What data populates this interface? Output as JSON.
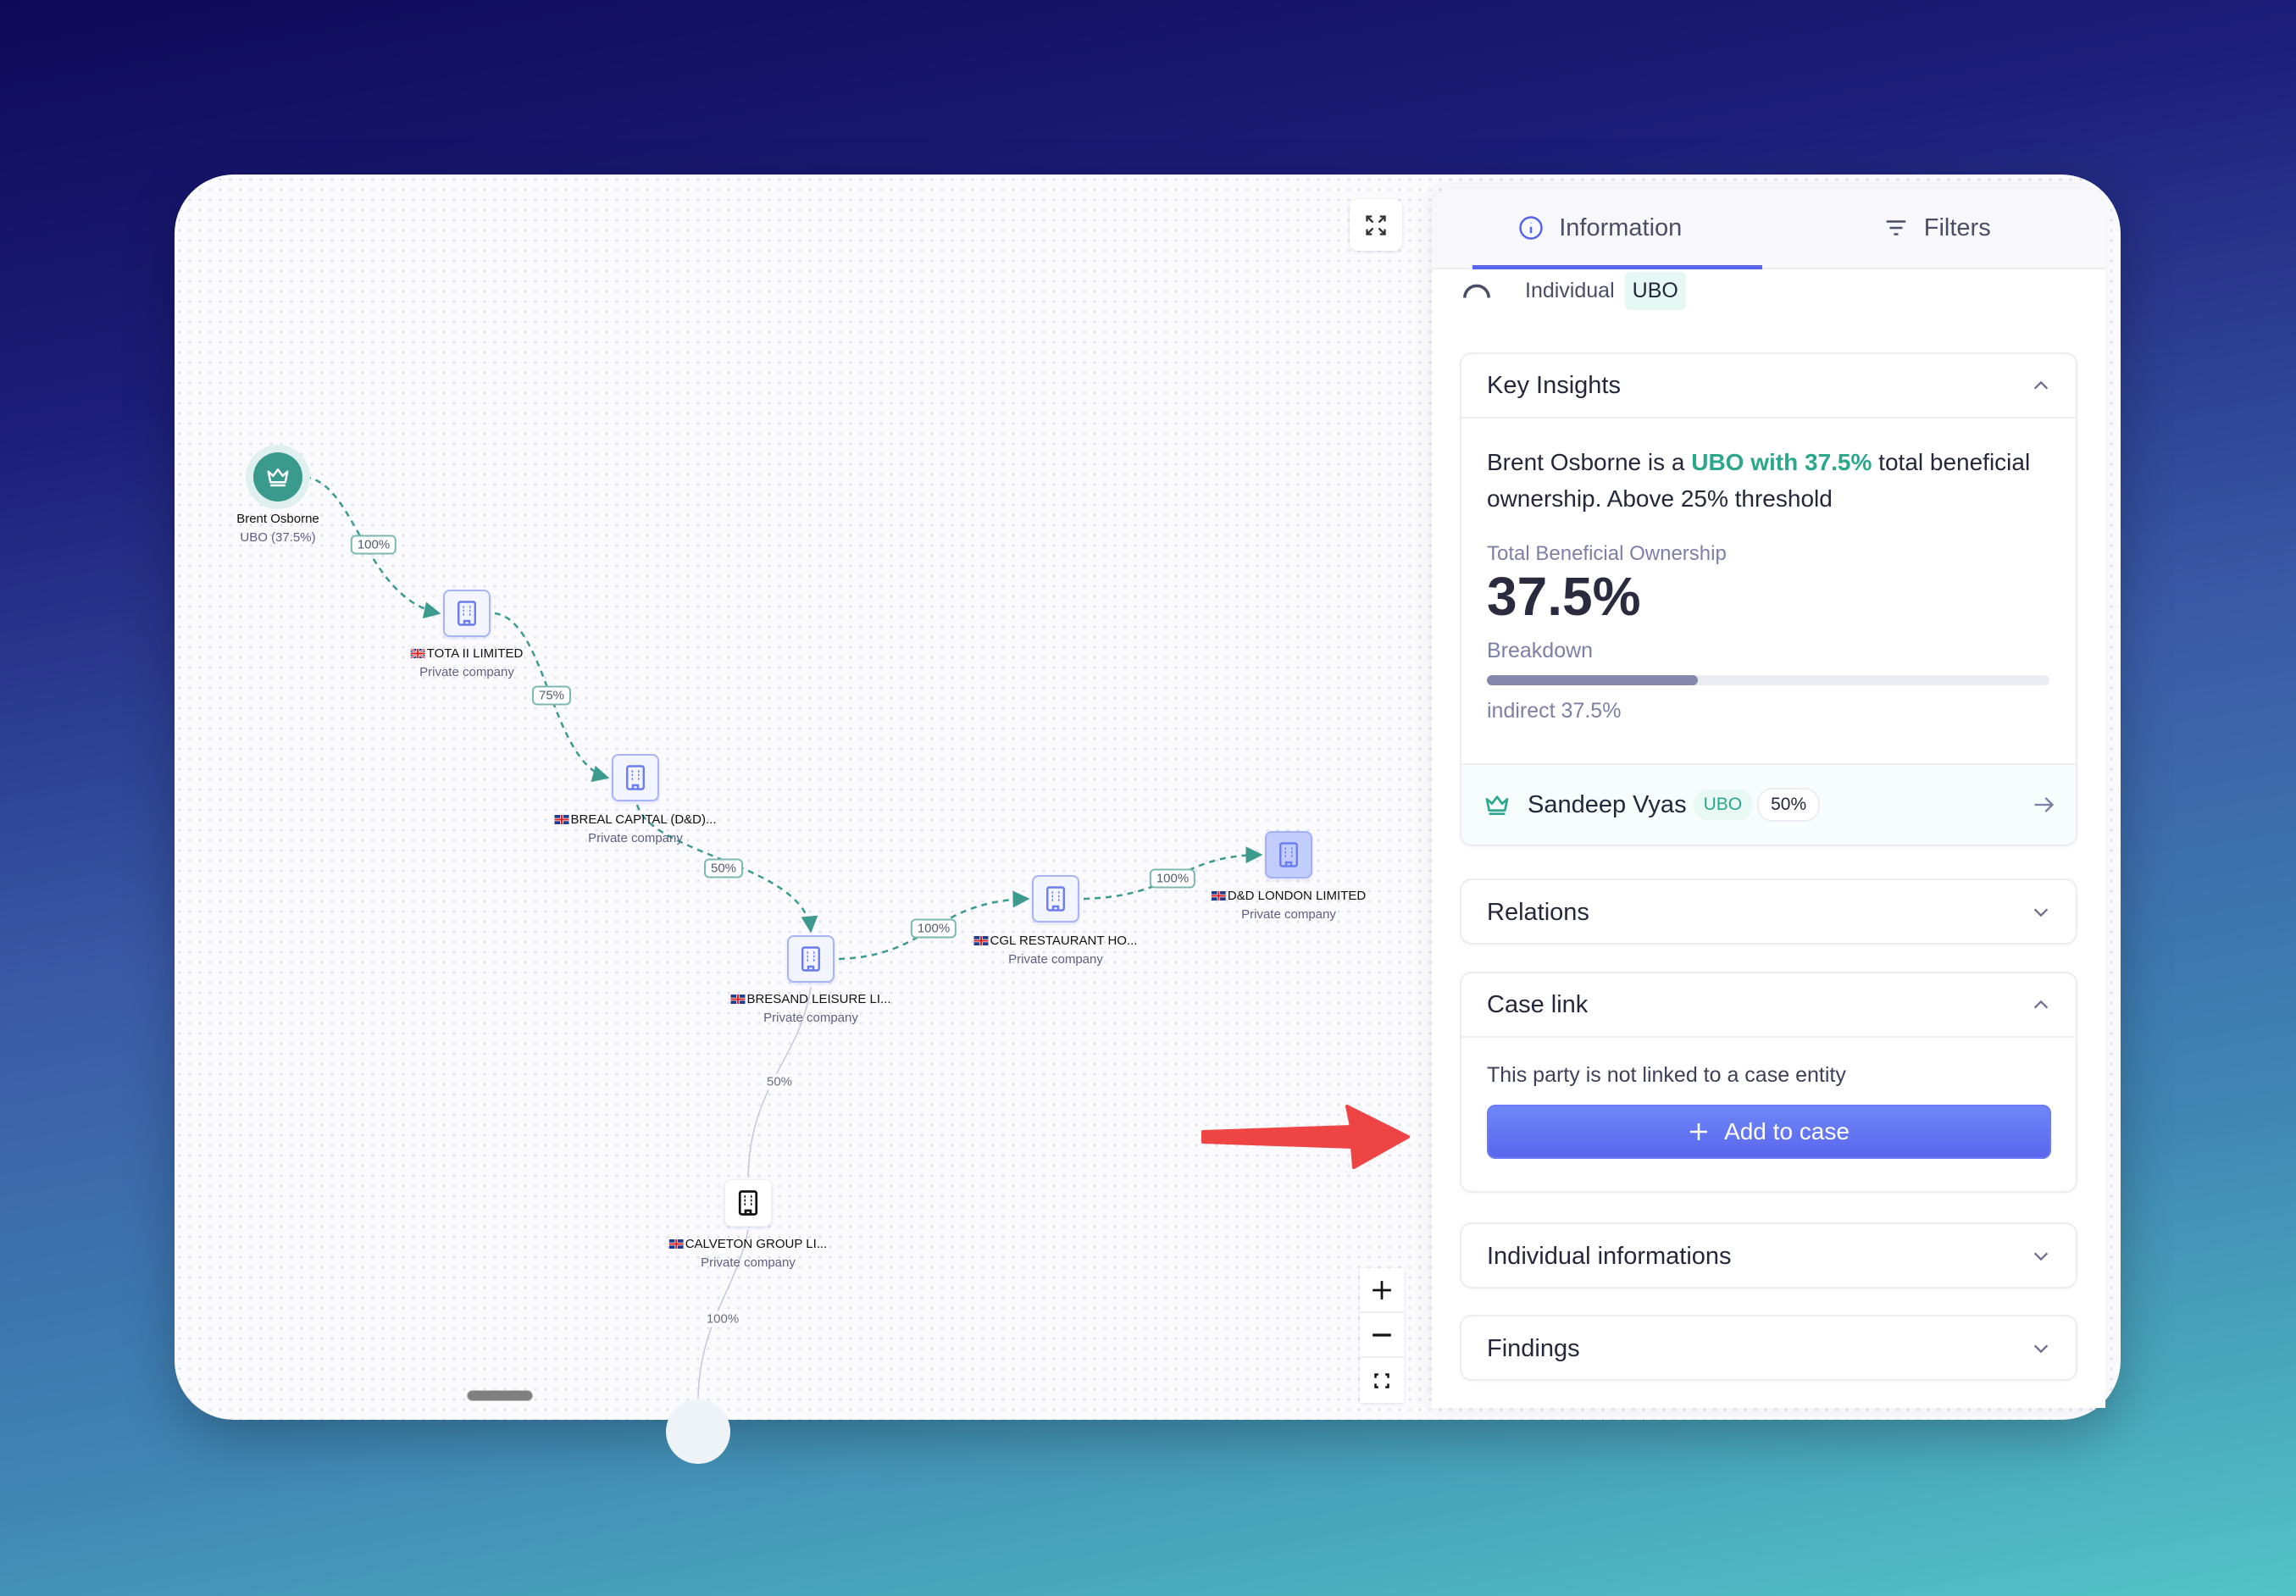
{
  "graph": {
    "nodes": {
      "brent": {
        "name": "Brent Osborne",
        "sub": "UBO (37.5%)"
      },
      "tota": {
        "name": "TOTA II LIMITED",
        "sub": "Private company"
      },
      "breal": {
        "name": "BREAL CAPITAL (D&D)...",
        "sub": "Private company"
      },
      "bresand": {
        "name": "BRESAND LEISURE LI...",
        "sub": "Private company"
      },
      "cgl": {
        "name": "CGL RESTAURANT HO...",
        "sub": "Private company"
      },
      "ddlondon": {
        "name": "D&D LONDON LIMITED",
        "sub": "Private company"
      },
      "calveton": {
        "name": "CALVETON GROUP LI...",
        "sub": "Private company"
      }
    },
    "edges": [
      "100%",
      "75%",
      "50%",
      "100%",
      "100%",
      "50%",
      "100%"
    ],
    "colors": {
      "ubo_edge": "#3d9a8f",
      "ubo_node": "#3a9a8e",
      "company_border": "#a9b4f7",
      "annotation_arrow": "#ef4444"
    }
  },
  "panel": {
    "tabs": [
      {
        "label": "Information",
        "icon": "info-icon",
        "active": true
      },
      {
        "label": "Filters",
        "icon": "filter-icon"
      }
    ],
    "entity_type": "Individual",
    "entity_badge": "UBO",
    "key_insights": {
      "title": "Key Insights",
      "text_before": "Brent Osborne is a ",
      "text_highlight": "UBO with 37.5%",
      "text_after": " total beneficial ownership. Above 25% threshold",
      "total_label": "Total Beneficial Ownership",
      "total_value": "37.5%",
      "breakdown_label": "Breakdown",
      "breakdown_fraction": 0.375,
      "breakdown_caption": "indirect 37.5%",
      "related": {
        "name": "Sandeep Vyas",
        "badge": "UBO",
        "percent": "50%"
      }
    },
    "relations": {
      "title": "Relations"
    },
    "case_link": {
      "title": "Case link",
      "message": "This party is not linked to a case entity",
      "button": "Add to case"
    },
    "individual_info": {
      "title": "Individual informations"
    },
    "findings": {
      "title": "Findings"
    },
    "accent": "#5664ee"
  }
}
